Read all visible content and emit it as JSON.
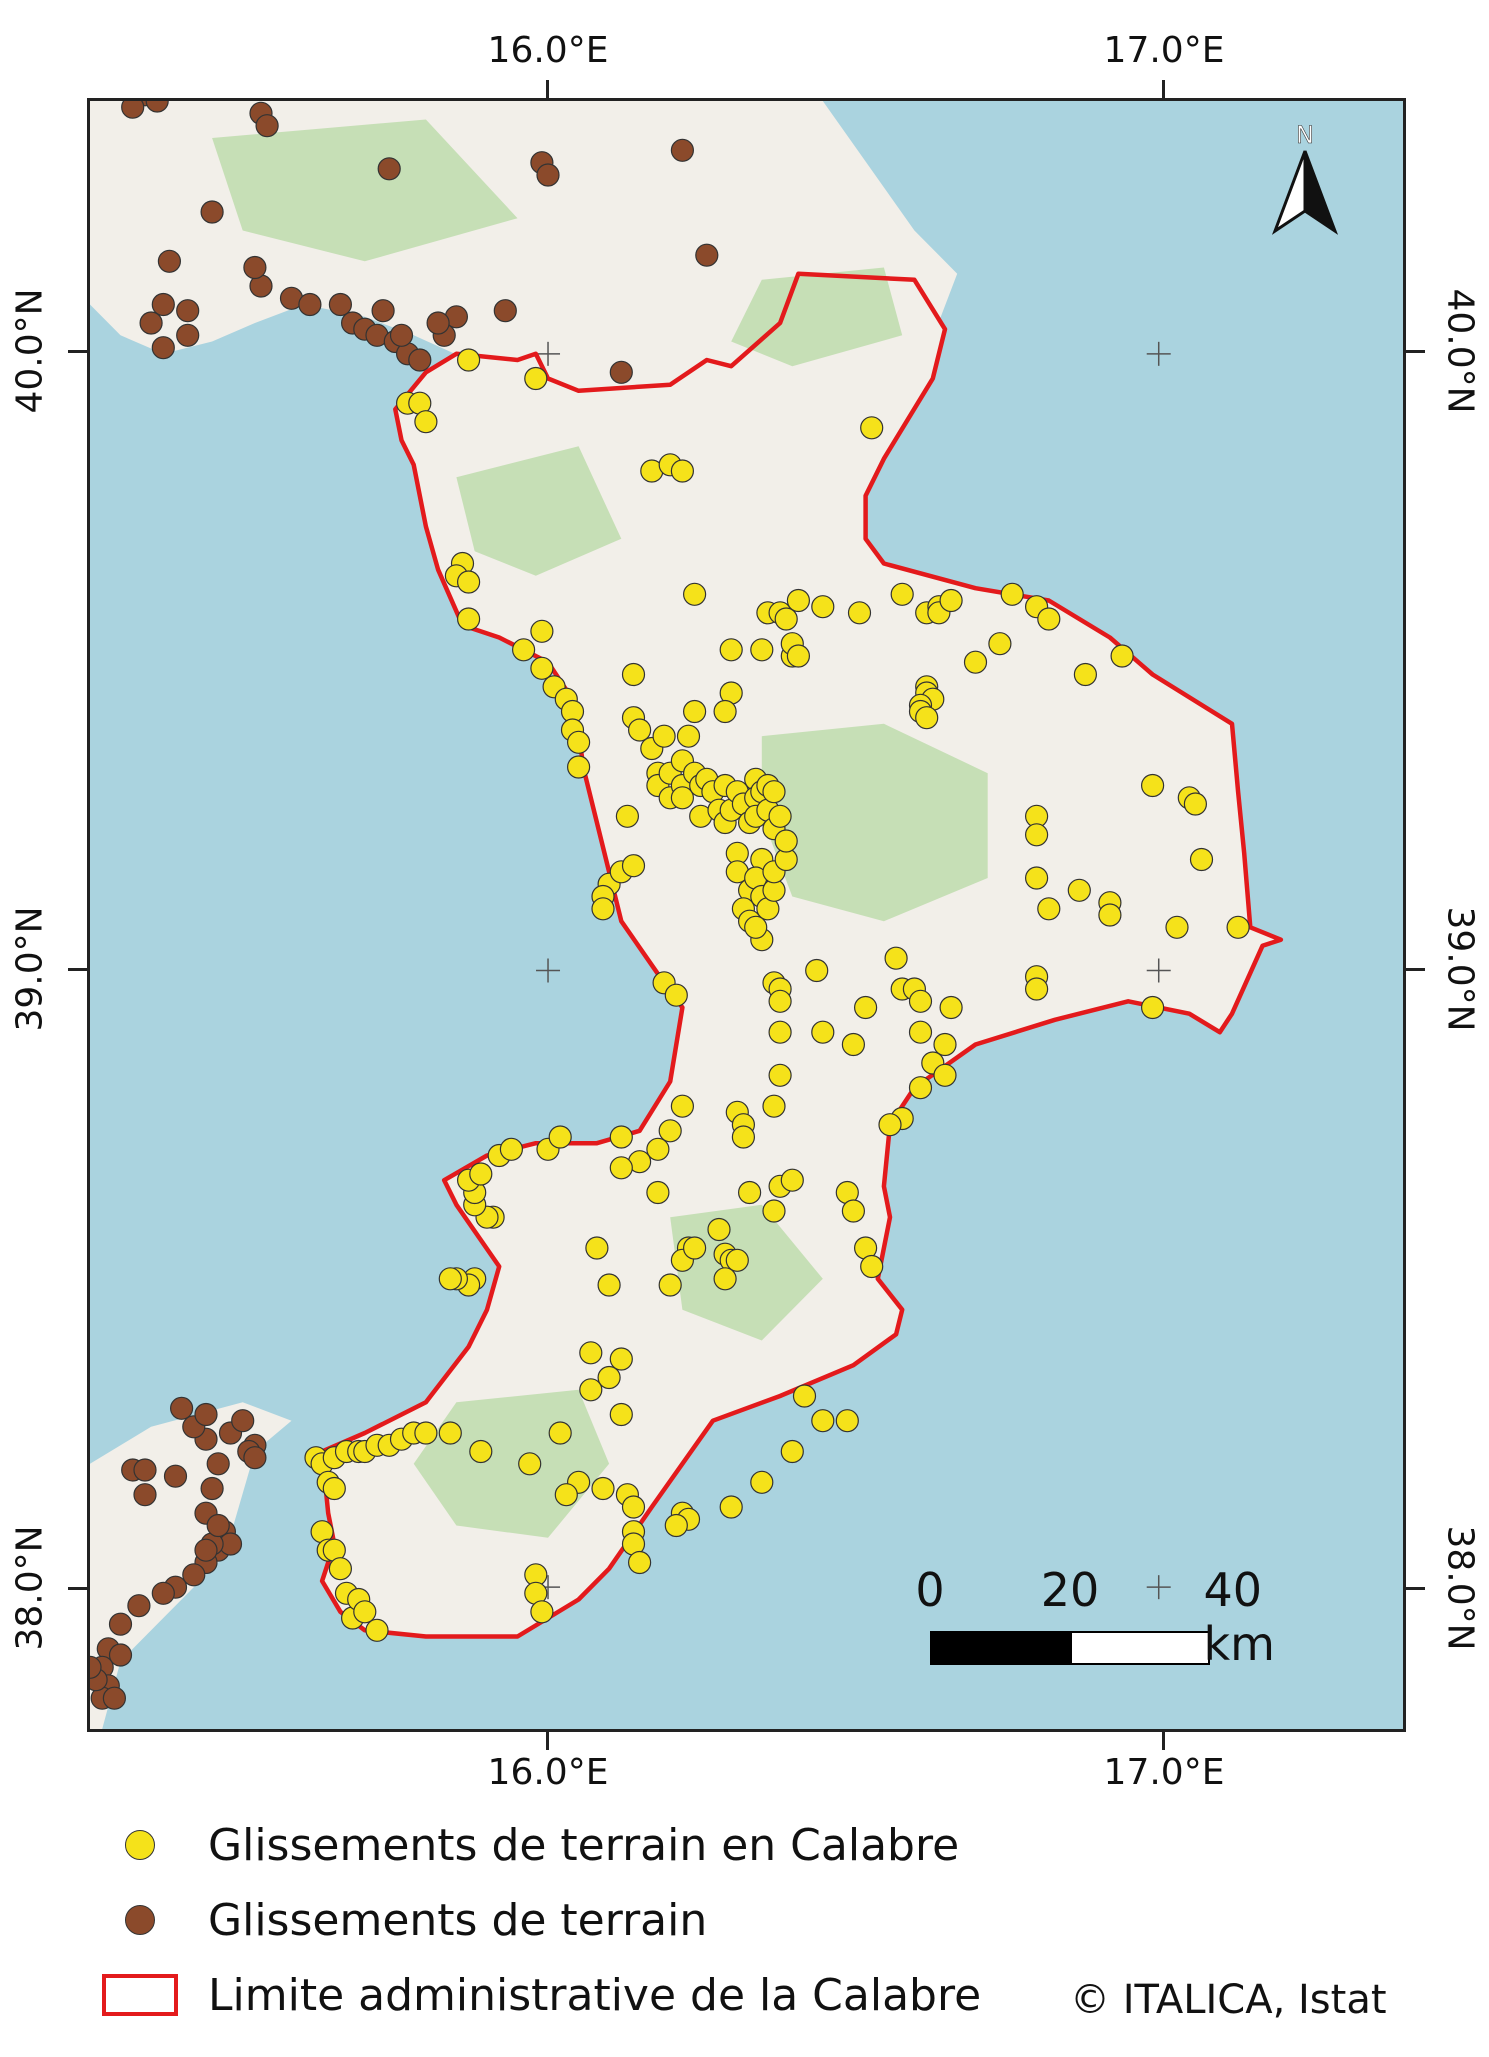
{
  "map": {
    "axes": {
      "top": [
        "16.0°E",
        "17.0°E"
      ],
      "bottom": [
        "16.0°E",
        "17.0°E"
      ],
      "left": [
        "40.0°N",
        "39.0°N",
        "38.0°N"
      ],
      "right": [
        "40.0°N",
        "39.0°N",
        "38.0°N"
      ]
    },
    "extent": {
      "lon": [
        15.25,
        17.4
      ],
      "lat": [
        37.77,
        40.41
      ]
    },
    "colors": {
      "sea": "#aad3df",
      "land": "#f2efe9",
      "forest": "#b7d9a4",
      "boundary": "#e31a1c",
      "calabria_points": "#f5e21a",
      "other_points": "#8b4a2b"
    },
    "scale_bar": {
      "labels": [
        "0",
        "20",
        "40 km"
      ]
    },
    "north_arrow": {
      "label": "N"
    },
    "calabria_boundary": [
      [
        15.85,
        40.0
      ],
      [
        15.95,
        39.99
      ],
      [
        15.98,
        40.0
      ],
      [
        16.0,
        39.96
      ],
      [
        16.05,
        39.94
      ],
      [
        16.2,
        39.95
      ],
      [
        16.26,
        39.99
      ],
      [
        16.3,
        39.98
      ],
      [
        16.38,
        40.05
      ],
      [
        16.41,
        40.13
      ],
      [
        16.6,
        40.12
      ],
      [
        16.65,
        40.04
      ],
      [
        16.63,
        39.96
      ],
      [
        16.55,
        39.83
      ],
      [
        16.52,
        39.77
      ],
      [
        16.52,
        39.7
      ],
      [
        16.55,
        39.66
      ],
      [
        16.7,
        39.62
      ],
      [
        16.82,
        39.6
      ],
      [
        16.92,
        39.54
      ],
      [
        16.99,
        39.48
      ],
      [
        17.12,
        39.4
      ],
      [
        17.13,
        39.29
      ],
      [
        17.14,
        39.19
      ],
      [
        17.15,
        39.07
      ],
      [
        17.2,
        39.05
      ],
      [
        17.17,
        39.04
      ],
      [
        17.12,
        38.93
      ],
      [
        17.1,
        38.9
      ],
      [
        17.05,
        38.93
      ],
      [
        16.95,
        38.95
      ],
      [
        16.83,
        38.92
      ],
      [
        16.7,
        38.88
      ],
      [
        16.6,
        38.81
      ],
      [
        16.56,
        38.75
      ],
      [
        16.55,
        38.65
      ],
      [
        16.56,
        38.6
      ],
      [
        16.54,
        38.5
      ],
      [
        16.58,
        38.45
      ],
      [
        16.57,
        38.41
      ],
      [
        16.5,
        38.36
      ],
      [
        16.38,
        38.31
      ],
      [
        16.27,
        38.27
      ],
      [
        16.17,
        38.13
      ],
      [
        16.1,
        38.03
      ],
      [
        16.05,
        37.98
      ],
      [
        15.95,
        37.92
      ],
      [
        15.8,
        37.92
      ],
      [
        15.7,
        37.93
      ],
      [
        15.66,
        37.96
      ],
      [
        15.63,
        38.01
      ],
      [
        15.65,
        38.07
      ],
      [
        15.64,
        38.12
      ],
      [
        15.63,
        38.22
      ],
      [
        15.7,
        38.25
      ],
      [
        15.8,
        38.3
      ],
      [
        15.87,
        38.39
      ],
      [
        15.9,
        38.45
      ],
      [
        15.92,
        38.52
      ],
      [
        15.85,
        38.62
      ],
      [
        15.83,
        38.66
      ],
      [
        15.9,
        38.7
      ],
      [
        15.98,
        38.72
      ],
      [
        16.08,
        38.72
      ],
      [
        16.15,
        38.74
      ],
      [
        16.2,
        38.82
      ],
      [
        16.21,
        38.88
      ],
      [
        16.22,
        38.94
      ],
      [
        16.19,
        38.98
      ],
      [
        16.12,
        39.08
      ],
      [
        16.09,
        39.2
      ],
      [
        16.06,
        39.32
      ],
      [
        16.04,
        39.44
      ],
      [
        16.0,
        39.5
      ],
      [
        15.92,
        39.54
      ],
      [
        15.86,
        39.56
      ],
      [
        15.82,
        39.65
      ],
      [
        15.8,
        39.72
      ],
      [
        15.78,
        39.82
      ],
      [
        15.76,
        39.86
      ],
      [
        15.75,
        39.91
      ],
      [
        15.8,
        39.97
      ],
      [
        15.85,
        40.0
      ]
    ],
    "calabria_points": [
      [
        15.87,
        39.99
      ],
      [
        15.98,
        39.96
      ],
      [
        15.77,
        39.92
      ],
      [
        15.79,
        39.92
      ],
      [
        15.8,
        39.89
      ],
      [
        16.17,
        39.81
      ],
      [
        16.2,
        39.82
      ],
      [
        16.22,
        39.81
      ],
      [
        16.53,
        39.88
      ],
      [
        15.86,
        39.66
      ],
      [
        15.85,
        39.64
      ],
      [
        15.87,
        39.63
      ],
      [
        15.87,
        39.57
      ],
      [
        15.96,
        39.52
      ],
      [
        15.99,
        39.55
      ],
      [
        15.99,
        39.49
      ],
      [
        16.01,
        39.46
      ],
      [
        16.03,
        39.44
      ],
      [
        16.04,
        39.42
      ],
      [
        16.04,
        39.39
      ],
      [
        16.05,
        39.37
      ],
      [
        16.05,
        39.33
      ],
      [
        16.1,
        39.14
      ],
      [
        16.09,
        39.12
      ],
      [
        16.09,
        39.1
      ],
      [
        16.12,
        39.16
      ],
      [
        16.14,
        39.17
      ],
      [
        16.14,
        39.48
      ],
      [
        16.14,
        39.41
      ],
      [
        16.15,
        39.39
      ],
      [
        16.17,
        39.36
      ],
      [
        16.18,
        39.32
      ],
      [
        16.18,
        39.3
      ],
      [
        16.2,
        39.32
      ],
      [
        16.2,
        39.28
      ],
      [
        16.22,
        39.34
      ],
      [
        16.22,
        39.3
      ],
      [
        16.22,
        39.28
      ],
      [
        16.24,
        39.32
      ],
      [
        16.25,
        39.3
      ],
      [
        16.26,
        39.31
      ],
      [
        16.27,
        39.29
      ],
      [
        16.25,
        39.25
      ],
      [
        16.28,
        39.26
      ],
      [
        16.29,
        39.3
      ],
      [
        16.29,
        39.24
      ],
      [
        16.3,
        39.26
      ],
      [
        16.31,
        39.29
      ],
      [
        16.32,
        39.27
      ],
      [
        16.33,
        39.24
      ],
      [
        16.34,
        39.31
      ],
      [
        16.34,
        39.28
      ],
      [
        16.34,
        39.25
      ],
      [
        16.35,
        39.29
      ],
      [
        16.36,
        39.3
      ],
      [
        16.36,
        39.26
      ],
      [
        16.37,
        39.29
      ],
      [
        16.37,
        39.23
      ],
      [
        16.31,
        39.19
      ],
      [
        16.31,
        39.16
      ],
      [
        16.33,
        39.13
      ],
      [
        16.35,
        39.18
      ],
      [
        16.34,
        39.15
      ],
      [
        16.35,
        39.12
      ],
      [
        16.32,
        39.1
      ],
      [
        16.33,
        39.08
      ],
      [
        16.35,
        39.05
      ],
      [
        16.34,
        39.07
      ],
      [
        16.36,
        39.1
      ],
      [
        16.37,
        39.13
      ],
      [
        16.37,
        39.16
      ],
      [
        16.39,
        39.18
      ],
      [
        16.39,
        39.21
      ],
      [
        16.38,
        39.25
      ],
      [
        16.13,
        39.25
      ],
      [
        16.19,
        39.38
      ],
      [
        16.23,
        39.38
      ],
      [
        16.24,
        39.42
      ],
      [
        16.24,
        39.61
      ],
      [
        16.3,
        39.52
      ],
      [
        16.3,
        39.45
      ],
      [
        16.29,
        39.42
      ],
      [
        16.35,
        39.52
      ],
      [
        16.36,
        39.58
      ],
      [
        16.38,
        39.58
      ],
      [
        16.39,
        39.57
      ],
      [
        16.4,
        39.51
      ],
      [
        16.4,
        39.53
      ],
      [
        16.41,
        39.6
      ],
      [
        16.41,
        39.51
      ],
      [
        16.45,
        39.59
      ],
      [
        16.51,
        39.58
      ],
      [
        16.58,
        39.61
      ],
      [
        16.62,
        39.58
      ],
      [
        16.64,
        39.59
      ],
      [
        16.64,
        39.58
      ],
      [
        16.66,
        39.6
      ],
      [
        16.62,
        39.46
      ],
      [
        16.62,
        39.45
      ],
      [
        16.63,
        39.44
      ],
      [
        16.61,
        39.43
      ],
      [
        16.61,
        39.42
      ],
      [
        16.62,
        39.41
      ],
      [
        16.7,
        39.5
      ],
      [
        16.74,
        39.53
      ],
      [
        16.76,
        39.61
      ],
      [
        16.8,
        39.59
      ],
      [
        16.82,
        39.57
      ],
      [
        16.88,
        39.48
      ],
      [
        16.94,
        39.51
      ],
      [
        16.99,
        39.3
      ],
      [
        17.05,
        39.28
      ],
      [
        17.06,
        39.27
      ],
      [
        17.07,
        39.18
      ],
      [
        16.8,
        39.25
      ],
      [
        16.8,
        39.22
      ],
      [
        16.8,
        39.15
      ],
      [
        16.82,
        39.1
      ],
      [
        16.87,
        39.13
      ],
      [
        16.92,
        39.11
      ],
      [
        16.92,
        39.09
      ],
      [
        17.03,
        39.07
      ],
      [
        17.13,
        39.07
      ],
      [
        16.99,
        38.94
      ],
      [
        16.8,
        38.99
      ],
      [
        16.8,
        38.97
      ],
      [
        16.57,
        39.02
      ],
      [
        16.58,
        38.97
      ],
      [
        16.6,
        38.97
      ],
      [
        16.61,
        38.95
      ],
      [
        16.61,
        38.9
      ],
      [
        16.66,
        38.94
      ],
      [
        16.65,
        38.88
      ],
      [
        16.63,
        38.85
      ],
      [
        16.65,
        38.83
      ],
      [
        16.61,
        38.81
      ],
      [
        16.58,
        38.76
      ],
      [
        16.56,
        38.75
      ],
      [
        16.52,
        38.94
      ],
      [
        16.5,
        38.88
      ],
      [
        16.45,
        38.9
      ],
      [
        16.44,
        39.0
      ],
      [
        16.37,
        38.98
      ],
      [
        16.38,
        38.97
      ],
      [
        16.38,
        38.95
      ],
      [
        16.38,
        38.9
      ],
      [
        16.38,
        38.83
      ],
      [
        16.37,
        38.78
      ],
      [
        16.31,
        38.77
      ],
      [
        16.32,
        38.75
      ],
      [
        16.32,
        38.73
      ],
      [
        16.19,
        38.98
      ],
      [
        16.21,
        38.96
      ],
      [
        16.22,
        38.78
      ],
      [
        16.2,
        38.74
      ],
      [
        16.18,
        38.71
      ],
      [
        16.15,
        38.69
      ],
      [
        16.12,
        38.68
      ],
      [
        16.12,
        38.73
      ],
      [
        16.18,
        38.64
      ],
      [
        16.23,
        38.55
      ],
      [
        16.22,
        38.53
      ],
      [
        16.2,
        38.49
      ],
      [
        16.24,
        38.55
      ],
      [
        16.28,
        38.58
      ],
      [
        16.29,
        38.54
      ],
      [
        16.3,
        38.53
      ],
      [
        16.31,
        38.53
      ],
      [
        16.29,
        38.5
      ],
      [
        16.33,
        38.64
      ],
      [
        16.37,
        38.61
      ],
      [
        16.38,
        38.65
      ],
      [
        16.4,
        38.66
      ],
      [
        16.49,
        38.64
      ],
      [
        16.5,
        38.61
      ],
      [
        16.52,
        38.55
      ],
      [
        16.53,
        38.52
      ],
      [
        16.08,
        38.55
      ],
      [
        16.1,
        38.49
      ],
      [
        16.0,
        38.71
      ],
      [
        16.02,
        38.73
      ],
      [
        15.91,
        38.6
      ],
      [
        15.9,
        38.6
      ],
      [
        15.88,
        38.62
      ],
      [
        15.88,
        38.64
      ],
      [
        15.87,
        38.66
      ],
      [
        15.89,
        38.67
      ],
      [
        15.92,
        38.7
      ],
      [
        15.94,
        38.71
      ],
      [
        15.88,
        38.5
      ],
      [
        15.87,
        38.49
      ],
      [
        15.85,
        38.5
      ],
      [
        15.84,
        38.5
      ],
      [
        16.1,
        38.34
      ],
      [
        16.12,
        38.37
      ],
      [
        16.07,
        38.38
      ],
      [
        16.07,
        38.32
      ],
      [
        16.12,
        38.28
      ],
      [
        16.02,
        38.25
      ],
      [
        15.97,
        38.2
      ],
      [
        16.22,
        38.12
      ],
      [
        16.23,
        38.11
      ],
      [
        16.21,
        38.1
      ],
      [
        16.3,
        38.13
      ],
      [
        16.35,
        38.17
      ],
      [
        16.4,
        38.22
      ],
      [
        16.45,
        38.27
      ],
      [
        16.49,
        38.27
      ],
      [
        16.42,
        38.31
      ],
      [
        15.62,
        38.21
      ],
      [
        15.63,
        38.2
      ],
      [
        15.65,
        38.21
      ],
      [
        15.67,
        38.22
      ],
      [
        15.69,
        38.22
      ],
      [
        15.7,
        38.22
      ],
      [
        15.72,
        38.23
      ],
      [
        15.74,
        38.23
      ],
      [
        15.76,
        38.24
      ],
      [
        15.78,
        38.25
      ],
      [
        15.8,
        38.25
      ],
      [
        15.84,
        38.25
      ],
      [
        15.89,
        38.22
      ],
      [
        15.64,
        38.17
      ],
      [
        15.65,
        38.16
      ],
      [
        15.63,
        38.09
      ],
      [
        15.64,
        38.06
      ],
      [
        15.65,
        38.06
      ],
      [
        15.66,
        38.03
      ],
      [
        15.67,
        37.99
      ],
      [
        15.68,
        37.95
      ],
      [
        15.69,
        37.98
      ],
      [
        15.7,
        37.96
      ],
      [
        15.72,
        37.93
      ],
      [
        16.13,
        38.15
      ],
      [
        16.14,
        38.13
      ],
      [
        16.14,
        38.09
      ],
      [
        16.14,
        38.07
      ],
      [
        16.15,
        38.04
      ],
      [
        15.98,
        38.02
      ],
      [
        15.98,
        37.99
      ],
      [
        15.99,
        37.96
      ],
      [
        16.09,
        38.16
      ],
      [
        16.05,
        38.17
      ],
      [
        16.03,
        38.15
      ]
    ],
    "other_points": [
      [
        15.34,
        40.42
      ],
      [
        15.36,
        40.41
      ],
      [
        15.32,
        40.4
      ],
      [
        15.53,
        40.39
      ],
      [
        15.54,
        40.37
      ],
      [
        15.99,
        40.31
      ],
      [
        16.0,
        40.29
      ],
      [
        16.22,
        40.33
      ],
      [
        15.53,
        40.11
      ],
      [
        15.58,
        40.09
      ],
      [
        15.61,
        40.08
      ],
      [
        15.45,
        40.23
      ],
      [
        15.38,
        40.15
      ],
      [
        15.41,
        40.07
      ],
      [
        15.37,
        40.08
      ],
      [
        15.35,
        40.05
      ],
      [
        15.37,
        40.01
      ],
      [
        15.41,
        40.03
      ],
      [
        15.74,
        40.3
      ],
      [
        15.66,
        40.08
      ],
      [
        15.68,
        40.05
      ],
      [
        15.7,
        40.04
      ],
      [
        15.72,
        40.03
      ],
      [
        15.75,
        40.02
      ],
      [
        15.77,
        40.0
      ],
      [
        15.79,
        39.99
      ],
      [
        15.85,
        40.06
      ],
      [
        15.93,
        40.07
      ],
      [
        16.12,
        39.97
      ],
      [
        16.26,
        40.16
      ],
      [
        15.52,
        40.14
      ],
      [
        15.73,
        40.07
      ],
      [
        15.76,
        40.03
      ],
      [
        15.83,
        40.03
      ],
      [
        15.82,
        40.05
      ],
      [
        15.52,
        38.23
      ],
      [
        15.48,
        38.25
      ],
      [
        15.5,
        38.27
      ],
      [
        15.51,
        38.22
      ],
      [
        15.52,
        38.21
      ],
      [
        15.46,
        38.2
      ],
      [
        15.45,
        38.16
      ],
      [
        15.44,
        38.24
      ],
      [
        15.42,
        38.26
      ],
      [
        15.44,
        38.28
      ],
      [
        15.4,
        38.29
      ],
      [
        15.32,
        38.19
      ],
      [
        15.34,
        38.15
      ],
      [
        15.39,
        38.18
      ],
      [
        15.44,
        38.12
      ],
      [
        15.47,
        38.09
      ],
      [
        15.47,
        38.07
      ],
      [
        15.46,
        38.06
      ],
      [
        15.44,
        38.04
      ],
      [
        15.42,
        38.02
      ],
      [
        15.39,
        38.0
      ],
      [
        15.37,
        37.99
      ],
      [
        15.33,
        37.97
      ],
      [
        15.3,
        37.94
      ],
      [
        15.28,
        37.9
      ],
      [
        15.3,
        37.89
      ],
      [
        15.27,
        37.87
      ],
      [
        15.28,
        37.84
      ],
      [
        15.27,
        37.82
      ],
      [
        15.26,
        37.85
      ],
      [
        15.29,
        37.82
      ],
      [
        15.25,
        37.87
      ],
      [
        15.34,
        38.19
      ],
      [
        15.48,
        38.07
      ],
      [
        15.45,
        38.07
      ],
      [
        15.46,
        38.1
      ],
      [
        15.44,
        38.06
      ]
    ]
  },
  "legend": {
    "items": [
      {
        "label": "Glissements de terrain en Calabre"
      },
      {
        "label": "Glissements de terrain"
      },
      {
        "label": "Limite administrative de la Calabre"
      }
    ],
    "copyright": "© ITALICA, Istat"
  }
}
